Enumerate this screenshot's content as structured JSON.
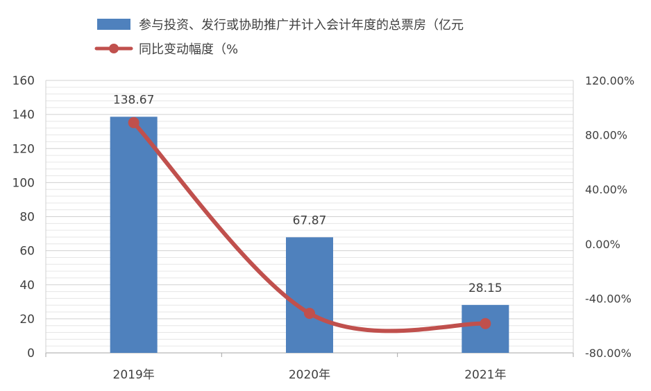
{
  "chart_data": {
    "type": "bar",
    "categories": [
      "2019年",
      "2020年",
      "2021年"
    ],
    "series": [
      {
        "name": "参与投资、发行或协助推广并计入会计年度的总票房（亿元",
        "type": "bar",
        "axis": "left",
        "values": [
          138.67,
          67.87,
          28.15
        ],
        "data_labels": [
          "138.67",
          "67.87",
          "28.15"
        ],
        "color": "#4f81bd"
      },
      {
        "name": "同比变动幅度（%",
        "type": "line",
        "axis": "right",
        "values": [
          89.0,
          -51.0,
          -58.5
        ],
        "color": "#c0504d"
      }
    ],
    "y_left": {
      "ylim": [
        0,
        160
      ],
      "ticks": [
        0,
        20,
        40,
        60,
        80,
        100,
        120,
        140,
        160
      ],
      "tick_labels": [
        "0",
        "20",
        "40",
        "60",
        "80",
        "100",
        "120",
        "140",
        "160"
      ]
    },
    "y_right": {
      "ylim": [
        -80,
        120
      ],
      "ticks": [
        -80,
        -40,
        0,
        40,
        80,
        120
      ],
      "tick_labels": [
        "-80.00%",
        "-40.00%",
        "0.00%",
        "40.00%",
        "80.00%",
        "120.00%"
      ]
    },
    "grid": true,
    "legend_placement": "top"
  }
}
